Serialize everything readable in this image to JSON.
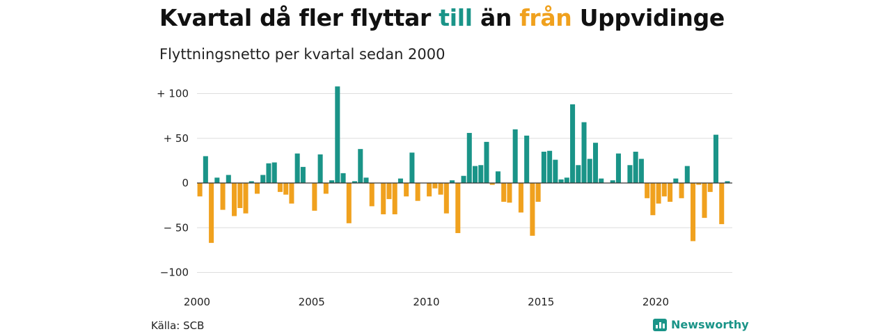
{
  "title": {
    "part1": "Kvartal då fler flyttar ",
    "till": "till",
    "part2": " än ",
    "fran": "från",
    "part3": " Uppvidinge"
  },
  "subtitle": "Flyttningsnetto per kvartal sedan 2000",
  "source": "Källa: SCB",
  "brand": {
    "name": "Newsworthy",
    "icon": "newsworthy-logo-icon"
  },
  "colors": {
    "positive": "#1a9488",
    "negative": "#f0a11e",
    "grid": "#dddddd",
    "zero": "#333333"
  },
  "chart_data": {
    "type": "bar",
    "title": "Kvartal då fler flyttar till än från Uppvidinge",
    "subtitle": "Flyttningsnetto per kvartal sedan 2000",
    "xlabel": "",
    "ylabel": "",
    "ylim": [
      -100,
      100
    ],
    "yticks": [
      100,
      50,
      0,
      -50,
      -100
    ],
    "ytick_labels": [
      "+ 100",
      "+  50",
      "0",
      "− 50",
      "−100"
    ],
    "xticks": [
      2000,
      2005,
      2010,
      2015,
      2020
    ],
    "grid": true,
    "start_year": 2000,
    "start_quarter": 1,
    "values": [
      -15,
      30,
      -67,
      6,
      -30,
      9,
      -37,
      -28,
      -34,
      2,
      -12,
      9,
      22,
      23,
      -10,
      -13,
      -23,
      33,
      18,
      0,
      -31,
      32,
      -12,
      3,
      108,
      11,
      -45,
      2,
      38,
      6,
      -26,
      0,
      -35,
      -18,
      -35,
      5,
      -15,
      34,
      -20,
      0,
      -15,
      -6,
      -13,
      -34,
      3,
      -56,
      8,
      56,
      19,
      20,
      46,
      -2,
      13,
      -21,
      -22,
      60,
      -33,
      53,
      -59,
      -21,
      35,
      36,
      26,
      4,
      6,
      88,
      20,
      68,
      27,
      45,
      5,
      0,
      3,
      33,
      0,
      20,
      35,
      27,
      -17,
      -36,
      -23,
      -15,
      -21,
      5,
      -17,
      19,
      -65,
      -2,
      -39,
      -10,
      54,
      -46,
      2
    ]
  }
}
